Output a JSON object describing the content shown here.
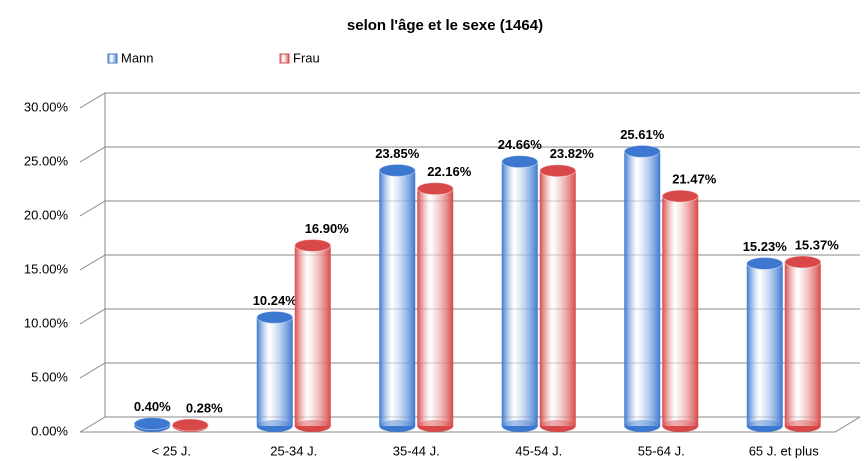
{
  "chart_data": {
    "type": "bar",
    "title": "selon l'âge et le sexe (1464)",
    "categories": [
      "< 25 J.",
      "25-34 J.",
      "35-44 J.",
      "45-54 J.",
      "55-64 J.",
      "65 J. et plus"
    ],
    "series": [
      {
        "name": "Mann",
        "color": "#3c78d0",
        "values": [
          0.4,
          10.24,
          23.85,
          24.66,
          25.61,
          15.23
        ],
        "value_labels": [
          "0.40%",
          "10.24%",
          "23.85%",
          "24.66%",
          "25.61%",
          "15.23%"
        ]
      },
      {
        "name": "Frau",
        "color": "#d84848",
        "values": [
          0.28,
          16.9,
          22.16,
          23.82,
          21.47,
          15.37
        ],
        "value_labels": [
          "0.28%",
          "16.90%",
          "22.16%",
          "23.82%",
          "21.47%",
          "15.37%"
        ]
      }
    ],
    "ylim": [
      0,
      30
    ],
    "yticks": [
      {
        "value": 0,
        "label": "0.00%"
      },
      {
        "value": 5,
        "label": "5.00%"
      },
      {
        "value": 10,
        "label": "10.00%"
      },
      {
        "value": 15,
        "label": "15.00%"
      },
      {
        "value": 20,
        "label": "20.00%"
      },
      {
        "value": 25,
        "label": "25.00%"
      },
      {
        "value": 30,
        "label": "30.00%"
      }
    ],
    "grid": true,
    "legend": "top-left"
  }
}
